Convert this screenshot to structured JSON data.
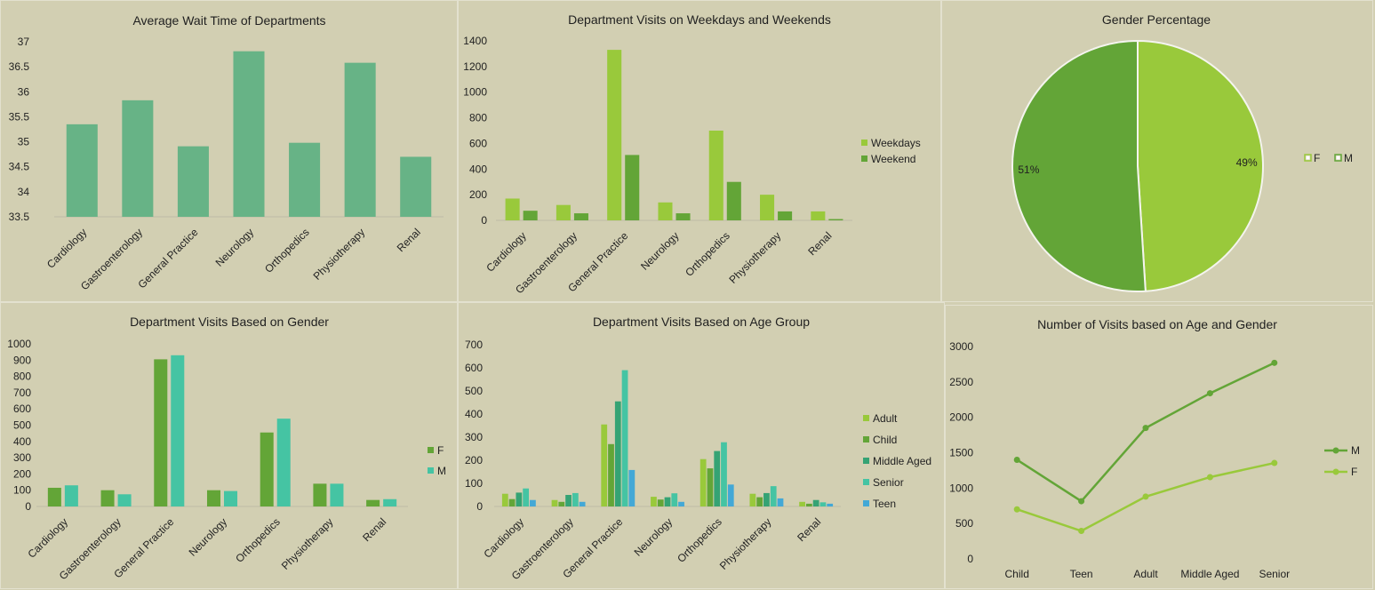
{
  "charts": [
    {
      "id": "wait_time",
      "type": "bar",
      "title": "Average Wait Time of Departments",
      "categories": [
        "Cardiology",
        "Gastroenterology",
        "General Practice",
        "Neurology",
        "Orthopedics",
        "Physiotherapy",
        "Renal"
      ],
      "series": [
        {
          "values": [
            35.35,
            35.83,
            34.91,
            36.81,
            34.98,
            36.58,
            34.7
          ],
          "color": "#67b386"
        }
      ],
      "ylim": [
        33.5,
        37
      ],
      "yticks": [
        "33.5",
        "34",
        "34.5",
        "35",
        "35.5",
        "36",
        "36.5",
        "37"
      ],
      "legend": "none"
    },
    {
      "id": "weekday_visits",
      "type": "bar",
      "title": "Department Visits on Weekdays and Weekends",
      "categories": [
        "Cardiology",
        "Gastroenterology",
        "General Practice",
        "Neurology",
        "Orthopedics",
        "Physiotherapy",
        "Renal"
      ],
      "series": [
        {
          "name": "Weekdays",
          "values": [
            170,
            120,
            1330,
            140,
            700,
            200,
            70
          ],
          "color": "#99c93b"
        },
        {
          "name": "Weekend",
          "values": [
            75,
            55,
            510,
            55,
            300,
            70,
            10
          ],
          "color": "#63a537"
        }
      ],
      "ylim": [
        0,
        1400
      ],
      "yticks": [
        "0",
        "200",
        "400",
        "600",
        "800",
        "1000",
        "1200",
        "1400"
      ],
      "legend": "right"
    },
    {
      "id": "gender_pct",
      "type": "pie",
      "title": "Gender Percentage",
      "slices": [
        {
          "name": "F",
          "value": 49,
          "label": "49%",
          "color": "#99c93b"
        },
        {
          "name": "M",
          "value": 51,
          "label": "51%",
          "color": "#63a537"
        }
      ],
      "legend": "right"
    },
    {
      "id": "gender_visits",
      "type": "bar",
      "title": "Department Visits Based on Gender",
      "categories": [
        "Cardiology",
        "Gastroenterology",
        "General Practice",
        "Neurology",
        "Orthopedics",
        "Physiotherapy",
        "Renal"
      ],
      "series": [
        {
          "name": "F",
          "values": [
            115,
            100,
            905,
            100,
            455,
            140,
            40
          ],
          "color": "#63a537"
        },
        {
          "name": "M",
          "values": [
            130,
            75,
            930,
            95,
            540,
            140,
            45
          ],
          "color": "#45c4a3"
        }
      ],
      "ylim": [
        0,
        1000
      ],
      "yticks": [
        "0",
        "100",
        "200",
        "300",
        "400",
        "500",
        "600",
        "700",
        "800",
        "900",
        "1000"
      ],
      "legend": "right"
    },
    {
      "id": "age_visits",
      "type": "bar",
      "title": "Department Visits Based on Age Group",
      "categories": [
        "Cardiology",
        "Gastroenterology",
        "General Practice",
        "Neurology",
        "Orthopedics",
        "Physiotherapy",
        "Renal"
      ],
      "series": [
        {
          "name": "Adult",
          "values": [
            55,
            28,
            355,
            42,
            205,
            55,
            20
          ],
          "color": "#99c93b"
        },
        {
          "name": "Child",
          "values": [
            32,
            20,
            270,
            30,
            165,
            40,
            12
          ],
          "color": "#63a537"
        },
        {
          "name": "Middle Aged",
          "values": [
            60,
            50,
            455,
            40,
            240,
            58,
            28
          ],
          "color": "#35a374"
        },
        {
          "name": "Senior",
          "values": [
            78,
            58,
            590,
            57,
            278,
            88,
            18
          ],
          "color": "#45c4a3"
        },
        {
          "name": "Teen",
          "values": [
            28,
            20,
            158,
            20,
            95,
            35,
            12
          ],
          "color": "#43a8d6"
        }
      ],
      "ylim": [
        0,
        700
      ],
      "yticks": [
        "0",
        "100",
        "200",
        "300",
        "400",
        "500",
        "600",
        "700"
      ],
      "legend": "right"
    },
    {
      "id": "age_gender",
      "type": "line",
      "title": "Number of Visits based on Age and Gender",
      "categories": [
        "Child",
        "Teen",
        "Adult",
        "Middle Aged",
        "Senior"
      ],
      "series": [
        {
          "name": "M",
          "values": [
            1400,
            815,
            1850,
            2340,
            2770
          ],
          "color": "#63a537"
        },
        {
          "name": "F",
          "values": [
            700,
            395,
            880,
            1155,
            1355
          ],
          "color": "#99c93b"
        }
      ],
      "ylim": [
        0,
        3000
      ],
      "yticks": [
        "0",
        "500",
        "1000",
        "1500",
        "2000",
        "2500",
        "3000"
      ],
      "legend": "right"
    }
  ]
}
